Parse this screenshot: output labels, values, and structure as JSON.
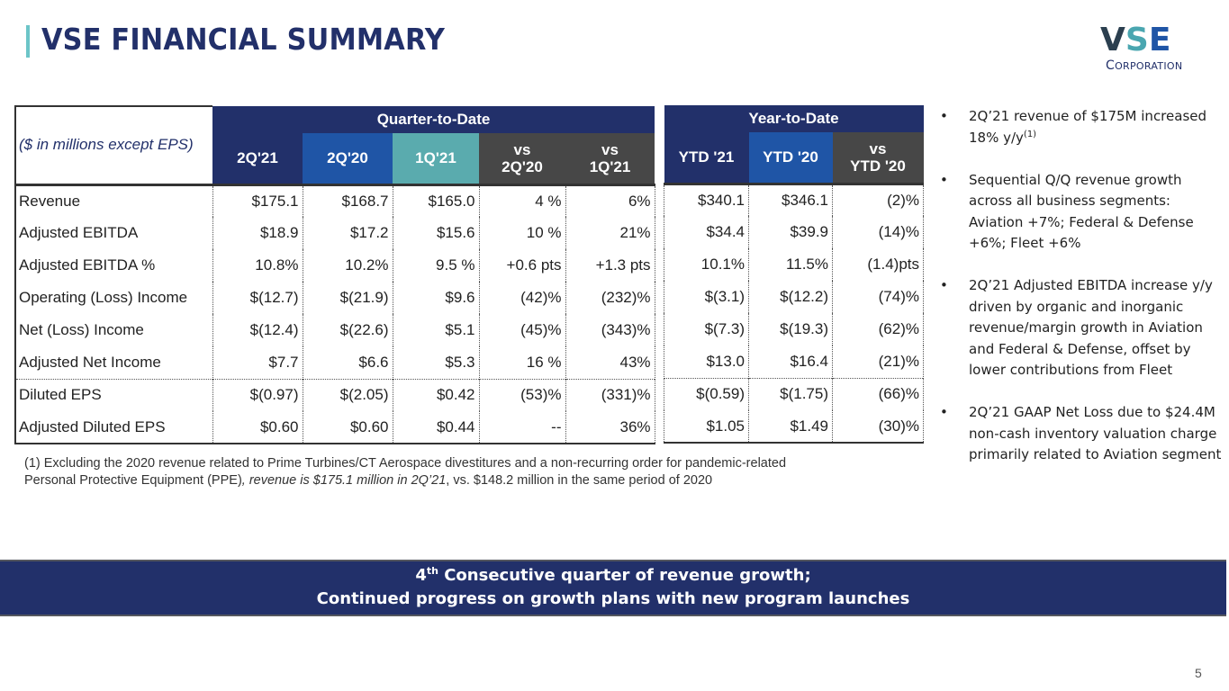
{
  "header": {
    "title": "VSE FINANCIAL SUMMARY",
    "logo": {
      "letters": [
        "V",
        "S",
        "E"
      ],
      "corp_first": "C",
      "corp_rest": "ORPORATION",
      "colors": [
        "#2b3f4f",
        "#4aa6b0",
        "#1f55a6"
      ]
    }
  },
  "table": {
    "unit_label": "($ in millions except EPS)",
    "qtd_title": "Quarter-to-Date",
    "ytd_title": "Year-to-Date",
    "qtd_columns": [
      {
        "line1": "2Q'21",
        "line2": ""
      },
      {
        "line1": "2Q'20",
        "line2": ""
      },
      {
        "line1": "1Q'21",
        "line2": ""
      },
      {
        "line1": "vs",
        "line2": "2Q'20"
      },
      {
        "line1": "vs",
        "line2": "1Q'21"
      }
    ],
    "ytd_columns": [
      {
        "line1": "YTD '21",
        "line2": ""
      },
      {
        "line1": "YTD '20",
        "line2": ""
      },
      {
        "line1": "vs",
        "line2": "YTD '20"
      }
    ],
    "rows": [
      {
        "label": "Revenue",
        "qtd": [
          "$175.1",
          "$168.7",
          "$165.0",
          "4 %",
          "6%"
        ],
        "ytd": [
          "$340.1",
          "$346.1",
          "(2)%"
        ]
      },
      {
        "label": "Adjusted EBITDA",
        "qtd": [
          "$18.9",
          "$17.2",
          "$15.6",
          "10 %",
          "21%"
        ],
        "ytd": [
          "$34.4",
          "$39.9",
          "(14)%"
        ]
      },
      {
        "label": "Adjusted EBITDA %",
        "qtd": [
          "10.8%",
          "10.2%",
          "9.5 %",
          "+0.6 pts",
          "+1.3 pts"
        ],
        "ytd": [
          "10.1%",
          "11.5%",
          "(1.4)pts"
        ]
      },
      {
        "label": "Operating (Loss) Income",
        "qtd": [
          "$(12.7)",
          "$(21.9)",
          "$9.6",
          "(42)%",
          "(232)%"
        ],
        "ytd": [
          "$(3.1)",
          "$(12.2)",
          "(74)%"
        ]
      },
      {
        "label": "Net (Loss) Income",
        "qtd": [
          "$(12.4)",
          "$(22.6)",
          "$5.1",
          "(45)%",
          "(343)%"
        ],
        "ytd": [
          "$(7.3)",
          "$(19.3)",
          "(62)%"
        ]
      },
      {
        "label": "Adjusted Net Income",
        "qtd": [
          "$7.7",
          "$6.6",
          "$5.3",
          "16 %",
          "43%"
        ],
        "ytd": [
          "$13.0",
          "$16.4",
          "(21)%"
        ]
      },
      {
        "label": "Diluted EPS",
        "qtd": [
          "$(0.97)",
          "$(2.05)",
          "$0.42",
          "(53)%",
          "(331)%"
        ],
        "ytd": [
          "$(0.59)",
          "$(1.75)",
          "(66)%"
        ]
      },
      {
        "label": "Adjusted Diluted EPS",
        "qtd": [
          "$0.60",
          "$0.60",
          "$0.44",
          "--",
          "36%"
        ],
        "ytd": [
          "$1.05",
          "$1.49",
          "(30)%"
        ]
      }
    ]
  },
  "footnote": {
    "part1": "(1) Excluding the 2020 revenue related to Prime Turbines/CT Aerospace divestitures and a non-recurring order for pandemic-related",
    "part2": "Personal Protective Equipment (PPE)",
    "part3": ", revenue is $175.1 million in 2Q’21",
    "part4": ", vs. $148.2 million in the same period of 2020"
  },
  "bullets": [
    {
      "text": "2Q’21 revenue of $175M increased 18% y/y",
      "sup": "(1)"
    },
    {
      "text": "Sequential Q/Q revenue growth across all business segments: Aviation +7%; Federal & Defense +6%; Fleet +6%",
      "sup": ""
    },
    {
      "text": "2Q’21 Adjusted EBITDA increase y/y driven by organic and inorganic revenue/margin growth in Aviation and Federal & Defense, offset by lower contributions from Fleet",
      "sup": ""
    },
    {
      "text": "2Q’21 GAAP Net Loss due to $24.4M non-cash inventory valuation charge primarily related to Aviation segment",
      "sup": ""
    }
  ],
  "bullet_char": "•",
  "banner": {
    "line1_num": "4",
    "line1_sup": "th",
    "line1_rest": " Consecutive quarter of revenue growth;",
    "line2": "Continued progress on growth plans with new program launches"
  },
  "page_number": "5"
}
